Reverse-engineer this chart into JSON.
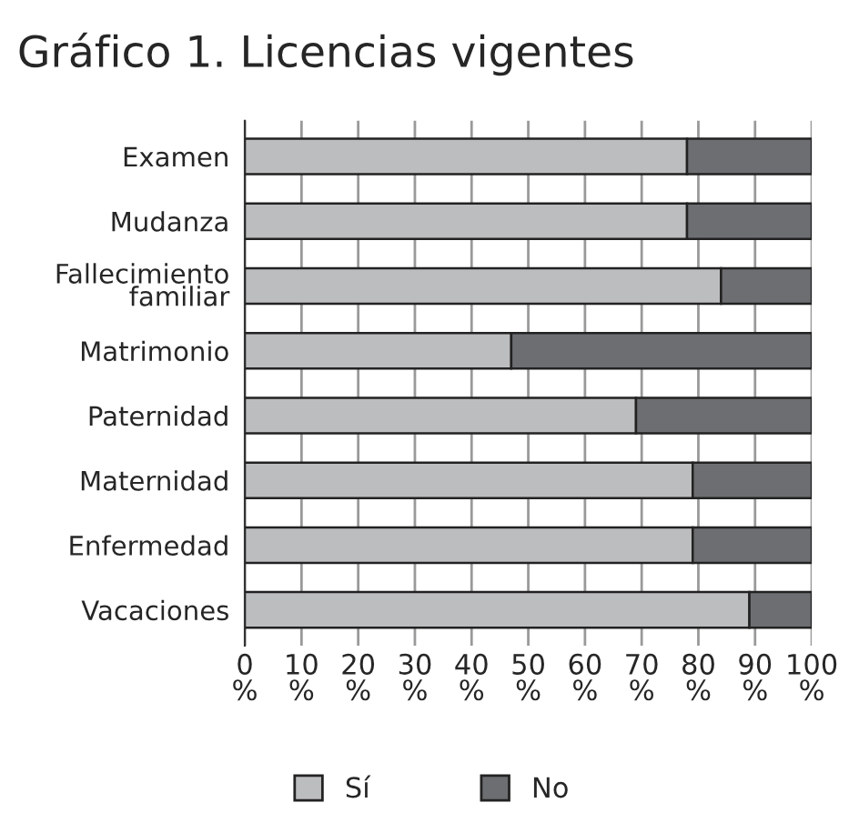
{
  "chart_data": {
    "type": "bar",
    "orientation": "horizontal",
    "stacked": true,
    "title": "Gráfico 1. Licencias vigentes",
    "categories": [
      "Examen",
      "Mudanza",
      "Fallecimiento\nfamiliar",
      "Matrimonio",
      "Paternidad",
      "Maternidad",
      "Enfermedad",
      "Vacaciones"
    ],
    "series": [
      {
        "name": "Sí",
        "color": "#bcbdbf",
        "values": [
          78,
          78,
          84,
          47,
          69,
          79,
          79,
          89
        ]
      },
      {
        "name": "No",
        "color": "#6d6e71",
        "values": [
          22,
          22,
          16,
          53,
          31,
          21,
          21,
          11
        ]
      }
    ],
    "xlim": [
      0,
      100
    ],
    "xticks": [
      {
        "value": 0,
        "label": "0\n%"
      },
      {
        "value": 10,
        "label": "10\n%"
      },
      {
        "value": 20,
        "label": "20\n%"
      },
      {
        "value": 30,
        "label": "30\n%"
      },
      {
        "value": 40,
        "label": "40\n%"
      },
      {
        "value": 50,
        "label": "50\n%"
      },
      {
        "value": 60,
        "label": "60\n%"
      },
      {
        "value": 70,
        "label": "70\n%"
      },
      {
        "value": 80,
        "label": "80\n%"
      },
      {
        "value": 90,
        "label": "90\n%"
      },
      {
        "value": 100,
        "label": "100\n%"
      }
    ],
    "grid": "x",
    "legend": "bottom"
  }
}
